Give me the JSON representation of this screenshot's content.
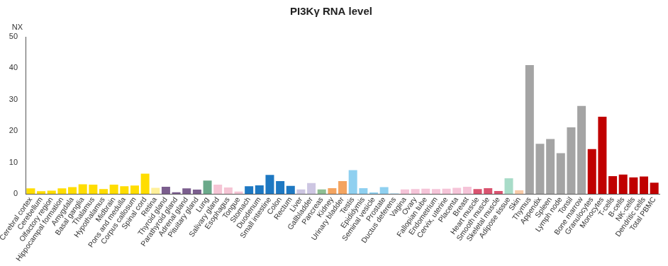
{
  "chart_data": {
    "type": "bar",
    "title": "PI3Kγ RNA level",
    "ylabel": "NX",
    "categories": [
      "Cerebral cortex",
      "Cerebellum",
      "Olfactory region",
      "Hippocampal formation",
      "Amygdala",
      "Basal ganglia",
      "Thalamus",
      "Hypothalamus",
      "Midbrain",
      "Pons and medulla",
      "Corpus callosum",
      "Spinal cord",
      "Retina",
      "Thyroid gland",
      "Parathyroid gland",
      "Adrenal gland",
      "Pituitary gland",
      "Lung",
      "Salivary gland",
      "Esophagus",
      "Tongue",
      "Stomach",
      "Duodenum",
      "Small intestine",
      "Colon",
      "Rectum",
      "Liver",
      "Gallbladder",
      "Pancreas",
      "Kidney",
      "Urinary bladder",
      "Testis",
      "Epididymis",
      "Seminal vesicle",
      "Prostate",
      "Ductus deferens",
      "Vagina",
      "Ovary",
      "Fallopian tube",
      "Endometrium",
      "Cervix, uterine",
      "Placenta",
      "Breast",
      "Heart muscle",
      "Smooth muscle",
      "Skeletal muscle",
      "Adipose tissue",
      "Skin",
      "Thymus",
      "Appendix",
      "Spleen",
      "Lymph node",
      "Tonsil",
      "Bone marrow",
      "Granulocytes",
      "Monocytes",
      "T-cells",
      "B-cells",
      "NK-cells",
      "Dendritic cells",
      "Total PBMC"
    ],
    "values": [
      1.8,
      0.9,
      1.1,
      1.8,
      2.2,
      3.1,
      3.0,
      1.6,
      3.0,
      2.5,
      2.7,
      6.5,
      2.0,
      2.3,
      0.6,
      1.8,
      1.4,
      4.3,
      3.0,
      2.1,
      0.8,
      2.5,
      2.8,
      6.1,
      4.1,
      2.6,
      1.5,
      3.5,
      1.5,
      1.9,
      4.1,
      7.6,
      1.9,
      0.5,
      2.2,
      0.2,
      1.5,
      1.6,
      1.7,
      1.6,
      1.7,
      2.0,
      2.3,
      1.6,
      1.9,
      1.0,
      5.0,
      1.2,
      41.0,
      16.0,
      17.5,
      13.0,
      21.2,
      28.0,
      14.3,
      24.6,
      5.7,
      6.2,
      5.3,
      5.6,
      3.6
    ],
    "colors": [
      "#ffdd00",
      "#ffdd00",
      "#ffdd00",
      "#ffdd00",
      "#ffdd00",
      "#ffdd00",
      "#ffdd00",
      "#ffdd00",
      "#ffdd00",
      "#ffdd00",
      "#ffdd00",
      "#ffdd00",
      "#fff09a",
      "#7b5e8e",
      "#7b5e8e",
      "#7b5e8e",
      "#7b5e8e",
      "#6aa98a",
      "#f5c4d4",
      "#f5c4d4",
      "#f5c4d4",
      "#1e78c2",
      "#1e78c2",
      "#1e78c2",
      "#1e78c2",
      "#1e78c2",
      "#cdc6e2",
      "#cdc6e2",
      "#8fbf93",
      "#f4a460",
      "#f4a460",
      "#8fd0f0",
      "#8fd0f0",
      "#8fd0f0",
      "#8fd0f0",
      "#8fd0f0",
      "#f5c4d8",
      "#f5c4d8",
      "#f5c4d8",
      "#f5c4d8",
      "#f5c4d8",
      "#f5c4d8",
      "#f5c4d8",
      "#d9536f",
      "#d9536f",
      "#d9536f",
      "#a8dcc8",
      "#f8cba8",
      "#a4a4a4",
      "#a4a4a4",
      "#a4a4a4",
      "#a4a4a4",
      "#a4a4a4",
      "#a4a4a4",
      "#c00000",
      "#c00000",
      "#c00000",
      "#c00000",
      "#c00000",
      "#c00000",
      "#c00000"
    ],
    "ylim": [
      0,
      50
    ],
    "yticks": [
      0,
      10,
      20,
      30,
      40,
      50
    ],
    "grid": false
  }
}
